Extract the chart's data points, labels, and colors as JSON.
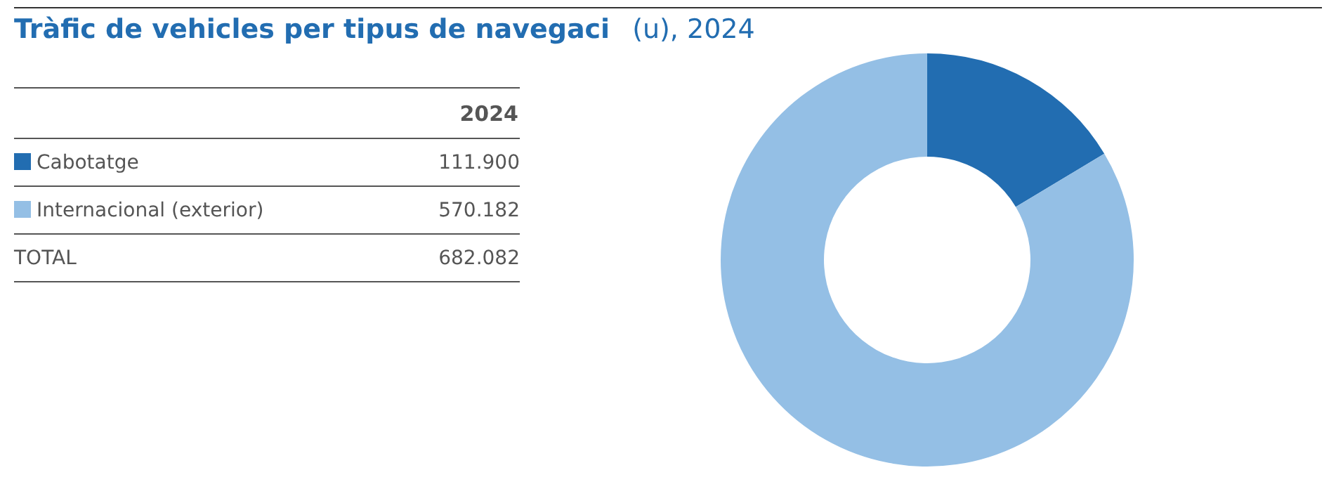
{
  "chart_data": {
    "type": "donut",
    "title": "Tràfic de vehicles per tipus de navegaci",
    "subtitle": "(u), 2024",
    "categories": [
      "Cabotatge",
      "Internacional (exterior)"
    ],
    "values": [
      111900,
      570182
    ],
    "colors": [
      "#226db1",
      "#94bfe5"
    ],
    "value_labels": [
      "111.900",
      "570.182"
    ],
    "legend_title": "2024",
    "legend": "left",
    "annotations": [
      "TOTAL",
      "682.082"
    ]
  }
}
